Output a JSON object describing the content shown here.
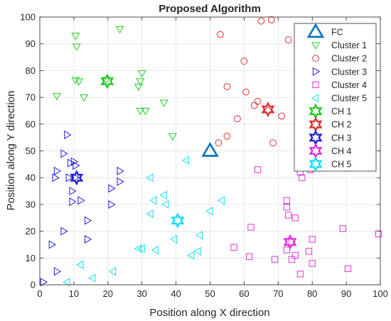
{
  "chart_data": {
    "type": "scatter",
    "title": "Proposed Algorithm",
    "xlabel": "Position along X direction",
    "ylabel": "Position along Y direction",
    "xlim": [
      0,
      100
    ],
    "ylim": [
      0,
      100
    ],
    "xticks": [
      "0",
      "10",
      "20",
      "30",
      "40",
      "50",
      "60",
      "70",
      "80",
      "90",
      "100"
    ],
    "yticks": [
      "0",
      "10",
      "20",
      "30",
      "40",
      "50",
      "60",
      "70",
      "80",
      "90",
      "100"
    ],
    "grid": true,
    "legend_position": "top-right",
    "series": [
      {
        "name": "FC",
        "marker": "triangle-up",
        "color": "#0072BD",
        "size": "large",
        "points": [
          [
            50,
            50
          ]
        ]
      },
      {
        "name": "Cluster 1",
        "marker": "triangle-down",
        "color": "#22CC22",
        "size": "small",
        "points": [
          [
            10.5,
            93
          ],
          [
            23.5,
            95.5
          ],
          [
            10.8,
            89
          ],
          [
            30,
            79
          ],
          [
            10.5,
            76.5
          ],
          [
            11.5,
            76
          ],
          [
            19.5,
            76.5
          ],
          [
            29.5,
            76
          ],
          [
            29,
            74
          ],
          [
            5,
            70.5
          ],
          [
            13,
            70
          ],
          [
            36.5,
            68
          ],
          [
            29.5,
            65
          ],
          [
            31,
            65
          ],
          [
            39,
            55.5
          ]
        ]
      },
      {
        "name": "Cluster 2",
        "marker": "circle",
        "color": "#E03030",
        "size": "small",
        "points": [
          [
            53,
            93.5
          ],
          [
            65,
            98.5
          ],
          [
            68,
            99
          ],
          [
            73,
            91.5
          ],
          [
            60,
            83.5
          ],
          [
            55,
            74
          ],
          [
            60.5,
            72
          ],
          [
            63,
            67
          ],
          [
            64,
            68.5
          ],
          [
            67,
            65
          ],
          [
            58,
            62
          ],
          [
            71,
            63
          ],
          [
            55,
            55.5
          ],
          [
            52.5,
            53
          ],
          [
            68.5,
            53
          ]
        ]
      },
      {
        "name": "Cluster 3",
        "marker": "triangle-right",
        "color": "#2020D0",
        "size": "small",
        "points": [
          [
            8,
            56
          ],
          [
            7,
            49
          ],
          [
            10,
            46
          ],
          [
            9,
            45.5
          ],
          [
            10.5,
            44.5
          ],
          [
            5,
            42.5
          ],
          [
            4.5,
            40
          ],
          [
            8.5,
            40
          ],
          [
            10.5,
            40
          ],
          [
            12,
            31.5
          ],
          [
            9.5,
            35
          ],
          [
            9.5,
            31
          ],
          [
            23.5,
            42.5
          ],
          [
            23.5,
            38.5
          ],
          [
            21,
            36
          ],
          [
            21,
            30
          ],
          [
            14,
            24
          ],
          [
            7,
            20
          ],
          [
            14,
            17
          ],
          [
            3.5,
            15
          ],
          [
            5,
            5
          ],
          [
            1,
            1
          ]
        ]
      },
      {
        "name": "Cluster 4",
        "marker": "square",
        "color": "#E030E0",
        "size": "small",
        "points": [
          [
            64,
            43
          ],
          [
            77,
            40
          ],
          [
            79.5,
            43
          ],
          [
            76.5,
            42
          ],
          [
            72.5,
            31.5
          ],
          [
            72.5,
            29
          ],
          [
            73,
            26
          ],
          [
            75,
            25
          ],
          [
            62,
            21.5
          ],
          [
            57,
            14
          ],
          [
            61.5,
            10.5
          ],
          [
            69,
            9.5
          ],
          [
            74,
            16
          ],
          [
            75,
            11
          ],
          [
            72.5,
            13
          ],
          [
            74,
            9.5
          ],
          [
            79,
            12.5
          ],
          [
            80,
            17
          ],
          [
            89,
            21
          ],
          [
            99.5,
            19
          ],
          [
            76.5,
            4
          ],
          [
            80,
            8
          ],
          [
            90.5,
            6
          ]
        ]
      },
      {
        "name": "Cluster 5",
        "marker": "triangle-left",
        "color": "#10E0F0",
        "size": "small",
        "points": [
          [
            43,
            46.5
          ],
          [
            32.5,
            40
          ],
          [
            36.5,
            33.5
          ],
          [
            33.5,
            31.5
          ],
          [
            37,
            30
          ],
          [
            53.5,
            31.5
          ],
          [
            50,
            27.5
          ],
          [
            32.5,
            26.5
          ],
          [
            39.5,
            17
          ],
          [
            34,
            13
          ],
          [
            47,
            18.5
          ],
          [
            46.5,
            12.5
          ],
          [
            44.5,
            11
          ],
          [
            29,
            13.5
          ],
          [
            30,
            13.5
          ],
          [
            12,
            7.5
          ],
          [
            21.5,
            5
          ],
          [
            15.5,
            2.5
          ],
          [
            8,
            1
          ]
        ]
      },
      {
        "name": "CH 1",
        "marker": "hexagram",
        "color": "#22CC22",
        "size": "medium",
        "points": [
          [
            19.8,
            76
          ]
        ]
      },
      {
        "name": "CH 2",
        "marker": "hexagram",
        "color": "#E03030",
        "size": "medium",
        "points": [
          [
            67,
            65.5
          ]
        ]
      },
      {
        "name": "CH 3",
        "marker": "hexagram",
        "color": "#2020D0",
        "size": "medium",
        "points": [
          [
            10.8,
            40
          ]
        ]
      },
      {
        "name": "CH 4",
        "marker": "hexagram",
        "color": "#E030E0",
        "size": "medium",
        "points": [
          [
            73.5,
            16
          ]
        ]
      },
      {
        "name": "CH 5",
        "marker": "hexagram",
        "color": "#10E0F0",
        "size": "medium",
        "points": [
          [
            40.5,
            24
          ]
        ]
      }
    ]
  }
}
